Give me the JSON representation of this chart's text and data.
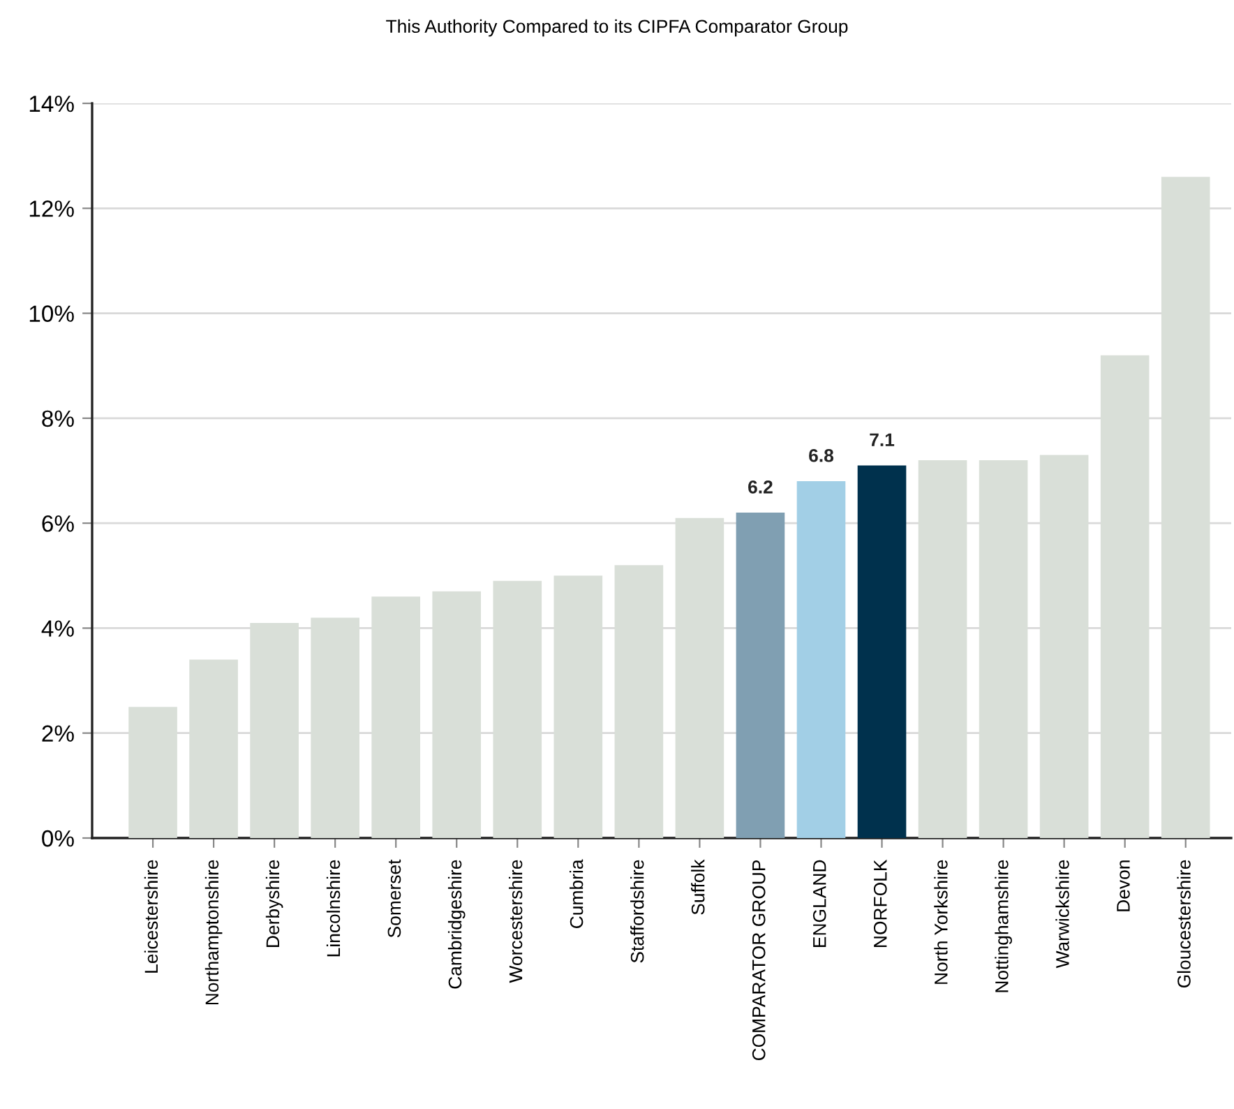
{
  "chart_data": {
    "type": "bar",
    "title": "This Authority Compared to its CIPFA Comparator Group",
    "categories": [
      "Leicestershire",
      "Northamptonshire",
      "Derbyshire",
      "Lincolnshire",
      "Somerset",
      "Cambridgeshire",
      "Worcestershire",
      "Cumbria",
      "Staffordshire",
      "Suffolk",
      "COMPARATOR GROUP",
      "ENGLAND",
      "NORFOLK",
      "North Yorkshire",
      "Nottinghamshire",
      "Warwickshire",
      "Devon",
      "Gloucestershire"
    ],
    "values": [
      2.5,
      3.4,
      4.1,
      4.2,
      4.6,
      4.7,
      4.9,
      5.0,
      5.2,
      6.1,
      6.2,
      6.8,
      7.1,
      7.2,
      7.2,
      7.3,
      9.2,
      12.6
    ],
    "colors": [
      "#d9dfd8",
      "#d9dfd8",
      "#d9dfd8",
      "#d9dfd8",
      "#d9dfd8",
      "#d9dfd8",
      "#d9dfd8",
      "#d9dfd8",
      "#d9dfd8",
      "#d9dfd8",
      "#809fb2",
      "#a2cfe6",
      "#00314d",
      "#d9dfd8",
      "#d9dfd8",
      "#d9dfd8",
      "#d9dfd8",
      "#d9dfd8"
    ],
    "value_labels": [
      null,
      null,
      null,
      null,
      null,
      null,
      null,
      null,
      null,
      null,
      "6.2",
      "6.8",
      "7.1",
      null,
      null,
      null,
      null,
      null
    ],
    "ylim": [
      0,
      14
    ],
    "yticks": [
      {
        "value": 0,
        "label": "0%"
      },
      {
        "value": 2,
        "label": "2%"
      },
      {
        "value": 4,
        "label": "4%"
      },
      {
        "value": 6,
        "label": "6%"
      },
      {
        "value": 8,
        "label": "8%"
      },
      {
        "value": 10,
        "label": "10%"
      },
      {
        "value": 12,
        "label": "12%"
      },
      {
        "value": 14,
        "label": "14%"
      }
    ],
    "grid": "y",
    "legend": false
  }
}
